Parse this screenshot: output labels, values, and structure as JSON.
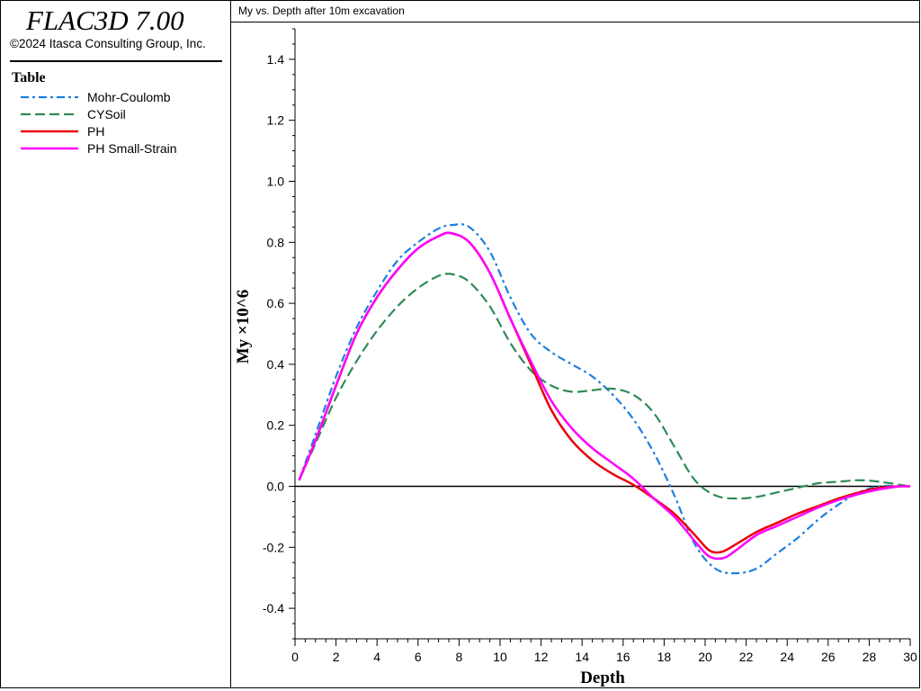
{
  "app": {
    "title": "FLAC3D 7.00",
    "copyright": "©2024 Itasca Consulting Group, Inc."
  },
  "legend": {
    "title": "Table",
    "items": [
      {
        "label": "Mohr-Coulomb",
        "color": "#1e7fe0",
        "dash": "dashdot"
      },
      {
        "label": "CYSoil",
        "color": "#2e8b57",
        "dash": "dash"
      },
      {
        "label": "PH",
        "color": "#e8000b",
        "dash": "solid"
      },
      {
        "label": "PH Small-Strain",
        "color": "#ff00ff",
        "dash": "solid"
      }
    ]
  },
  "plot": {
    "title": "My vs. Depth after 10m excavation"
  },
  "chart_data": {
    "type": "line",
    "title": "My vs. Depth after 10m excavation",
    "xlabel": "Depth",
    "ylabel": "My ×10^6",
    "xlim": [
      0,
      30
    ],
    "ylim": [
      -0.5,
      1.5
    ],
    "xticks": [
      0,
      2,
      4,
      6,
      8,
      10,
      12,
      14,
      16,
      18,
      20,
      22,
      24,
      26,
      28,
      30
    ],
    "yticks": [
      -0.4,
      -0.2,
      0.0,
      0.2,
      0.4,
      0.6,
      0.8,
      1.0,
      1.2,
      1.4
    ],
    "ytick_labels": [
      "-0.4",
      "-0.2",
      "0.0",
      "0.2",
      "0.4",
      "0.6",
      "0.8",
      "1.0",
      "1.2",
      "1.4"
    ],
    "zero_line": true,
    "grid": false,
    "series": [
      {
        "name": "Mohr-Coulomb",
        "color": "#1e7fe0",
        "dash": "dashdot",
        "x": [
          0.2,
          1,
          2,
          3,
          4,
          5,
          6,
          7,
          7.7,
          8.5,
          9.5,
          10.5,
          11.5,
          12.5,
          13.5,
          14.5,
          15.5,
          16.5,
          17.5,
          18.5,
          19.5,
          20.5,
          21.5,
          22.5,
          23.5,
          24.5,
          25.5,
          26.5,
          27.5,
          28.5,
          29.5,
          30
        ],
        "y": [
          0.02,
          0.17,
          0.36,
          0.52,
          0.64,
          0.74,
          0.8,
          0.845,
          0.857,
          0.85,
          0.77,
          0.62,
          0.5,
          0.44,
          0.4,
          0.36,
          0.3,
          0.22,
          0.11,
          -0.03,
          -0.19,
          -0.27,
          -0.285,
          -0.27,
          -0.22,
          -0.17,
          -0.11,
          -0.06,
          -0.02,
          0.0,
          0.0,
          0.0
        ]
      },
      {
        "name": "CYSoil",
        "color": "#2e8b57",
        "dash": "dash",
        "x": [
          0.2,
          1,
          2,
          3,
          4,
          5,
          6,
          7,
          7.7,
          8.5,
          9.5,
          10.5,
          11.5,
          12.5,
          13.5,
          14.5,
          15.5,
          16.5,
          17.5,
          18.5,
          19.5,
          20.5,
          21.5,
          22.5,
          23.5,
          24.5,
          25.5,
          26.5,
          27.5,
          28.5,
          29.5,
          30
        ],
        "y": [
          0.02,
          0.14,
          0.29,
          0.41,
          0.51,
          0.59,
          0.65,
          0.69,
          0.695,
          0.67,
          0.59,
          0.47,
          0.38,
          0.33,
          0.31,
          0.315,
          0.32,
          0.3,
          0.24,
          0.13,
          0.02,
          -0.03,
          -0.04,
          -0.035,
          -0.02,
          -0.005,
          0.01,
          0.015,
          0.02,
          0.015,
          0.005,
          0.0
        ]
      },
      {
        "name": "PH",
        "color": "#e8000b",
        "dash": "solid",
        "x": [
          0.2,
          1,
          2,
          3,
          4,
          5,
          6,
          7,
          7.6,
          8.5,
          9.5,
          10.5,
          11.5,
          12.5,
          13.5,
          14.5,
          15.5,
          16.5,
          17.5,
          18.5,
          19.5,
          20.2,
          20.8,
          21.5,
          22.5,
          23.5,
          24.5,
          25.5,
          26.5,
          27.5,
          28.5,
          29.5,
          30
        ],
        "y": [
          0.02,
          0.15,
          0.33,
          0.5,
          0.62,
          0.71,
          0.78,
          0.82,
          0.83,
          0.8,
          0.7,
          0.55,
          0.4,
          0.25,
          0.15,
          0.085,
          0.04,
          0.005,
          -0.04,
          -0.09,
          -0.16,
          -0.21,
          -0.215,
          -0.19,
          -0.15,
          -0.12,
          -0.09,
          -0.065,
          -0.04,
          -0.02,
          -0.005,
          0.0,
          0.0
        ]
      },
      {
        "name": "PH Small-Strain",
        "color": "#ff00ff",
        "dash": "solid",
        "x": [
          0.2,
          1,
          2,
          3,
          4,
          5,
          6,
          7,
          7.6,
          8.5,
          9.5,
          10.5,
          11.5,
          12.5,
          13.5,
          14.5,
          15.5,
          16.5,
          17.5,
          18.5,
          19.5,
          20.2,
          20.9,
          21.5,
          22.5,
          23.5,
          24.5,
          25.5,
          26.5,
          27.5,
          28.5,
          29.5,
          30
        ],
        "y": [
          0.02,
          0.15,
          0.33,
          0.5,
          0.62,
          0.71,
          0.78,
          0.82,
          0.83,
          0.8,
          0.7,
          0.55,
          0.41,
          0.28,
          0.19,
          0.125,
          0.075,
          0.025,
          -0.04,
          -0.1,
          -0.18,
          -0.23,
          -0.235,
          -0.21,
          -0.16,
          -0.13,
          -0.1,
          -0.07,
          -0.045,
          -0.025,
          -0.01,
          0.0,
          0.0
        ]
      }
    ]
  }
}
